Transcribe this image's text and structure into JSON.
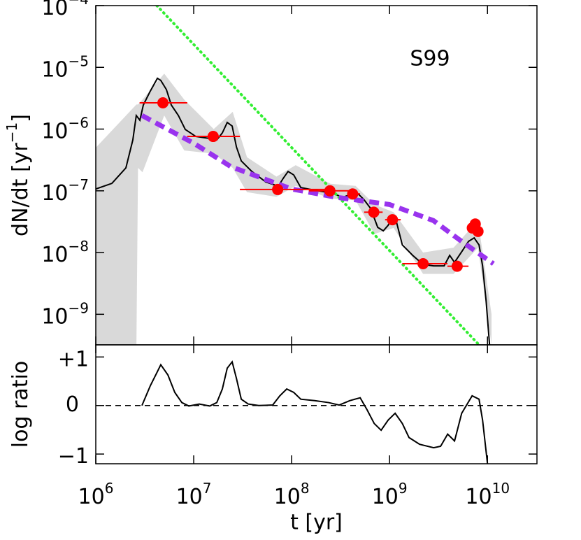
{
  "chart_data": [
    {
      "type": "line",
      "annotation": "S99",
      "ylabel": {
        "text": "dN/dt  [yr",
        "superscript": "−1",
        "suffix": "]"
      },
      "xlog": true,
      "ylog": true,
      "xlim": [
        1000000,
        32000000000
      ],
      "ylim": [
        3.2e-10,
        0.0001
      ],
      "xticks": [
        1000000,
        10000000,
        100000000,
        1000000000,
        10000000000
      ],
      "yticks": [
        {
          "value": 0.0001,
          "label": "10",
          "exponent": "−4"
        },
        {
          "value": 1e-05,
          "label": "10",
          "exponent": "−5"
        },
        {
          "value": 1e-06,
          "label": "10",
          "exponent": "−6"
        },
        {
          "value": 1e-07,
          "label": "10",
          "exponent": "−7"
        },
        {
          "value": 1e-08,
          "label": "10",
          "exponent": "−8"
        },
        {
          "value": 1e-09,
          "label": "10",
          "exponent": "−9"
        }
      ],
      "series": [
        {
          "kind": "band",
          "color": "#d9d9d9",
          "x": [
            1000000,
            2600000,
            2700000,
            3000000,
            5000000,
            8000000,
            16000000,
            25000000,
            35000000,
            70000000,
            110000000,
            250000000,
            450000000,
            700000000,
            1100000000,
            2200000000,
            4500000000,
            8000000000,
            11000000000
          ],
          "upper": [
            5e-07,
            2.5e-06,
            2.5e-06,
            3e-06,
            7.9e-06,
            3e-06,
            1e-06,
            1.9e-06,
            3.5e-07,
            1.7e-07,
            2.6e-07,
            1.3e-07,
            1.2e-07,
            6e-08,
            4.5e-08,
            1e-08,
            1.2e-08,
            3.3e-08,
            1e-09
          ],
          "lower": [
            3.2e-10,
            3.2e-10,
            2.35e-07,
            2e-07,
            1.66e-06,
            4.5e-07,
            4e-07,
            2.35e-07,
            9.5e-08,
            8e-08,
            1.2e-07,
            7.5e-08,
            7e-08,
            2e-08,
            2.5e-08,
            4.5e-09,
            4.5e-09,
            1.2e-08,
            3.2e-10
          ]
        },
        {
          "kind": "line",
          "color": "#000000",
          "width": 2,
          "style": "solid",
          "x": [
            1000000,
            1460000,
            2030000,
            2390000,
            2590000,
            2820000,
            3060000,
            3610000,
            4260000,
            4610000,
            5260000,
            5900000,
            6970000,
            8200000,
            10500000,
            14600000,
            17200000,
            19600000,
            22000000,
            24700000,
            27300000,
            30600000,
            39200000,
            54500000,
            73100000,
            82000000,
            92000000,
            105000000,
            124000000,
            172000000,
            259000000,
            332000000,
            461000000,
            545000000,
            641000000,
            757000000,
            863000000,
            968000000,
            1050000000,
            1160000000,
            1350000000,
            1720000000,
            2200000000,
            2820000000,
            3610000000,
            4110000000,
            4610000000,
            5450000000,
            6410000000,
            7310000000,
            8200000000,
            8910000000,
            9680000000,
            10500000000
          ],
          "values": [
            1.07e-07,
            1.32e-07,
            2.35e-07,
            6.67e-07,
            1.66e-06,
            1.39e-06,
            2.46e-06,
            4.15e-06,
            6.64e-06,
            6.14e-06,
            4.37e-06,
            2.46e-06,
            1.66e-06,
            9.86e-07,
            7.6e-07,
            7.03e-07,
            6.67e-07,
            8.67e-07,
            1.28e-06,
            1.12e-06,
            5.14e-07,
            3.05e-07,
            2.06e-07,
            1.39e-07,
            1.19e-07,
            1.59e-07,
            2.06e-07,
            1.81e-07,
            1.13e-07,
            1.02e-07,
            9.18e-08,
            7.85e-08,
            9.42e-08,
            7.26e-08,
            5.18e-08,
            2.56e-08,
            2.25e-08,
            2.77e-08,
            3.59e-08,
            3.41e-08,
            1.33e-08,
            9.02e-09,
            6.42e-09,
            6.09e-09,
            6.09e-09,
            9.02e-09,
            6.94e-09,
            1.03e-08,
            1.52e-08,
            1.73e-08,
            1.33e-08,
            6.09e-09,
            1.65e-09,
            3.19e-10
          ]
        },
        {
          "kind": "line",
          "color": "#33ee33",
          "width": 4,
          "style": "dotted",
          "x": [
            4200000,
            8200000000
          ],
          "values": [
            0.0001,
            3.2e-10
          ]
        },
        {
          "kind": "line",
          "color": "#9933ee",
          "width": 7,
          "style": "dashed",
          "x": [
            2960000,
            10000000,
            24000000,
            100000000,
            280000000,
            1000000000,
            2800000000,
            5500000000,
            11500000000
          ],
          "values": [
            1.66e-06,
            5.9e-07,
            2.46e-07,
            1.07e-07,
            7.9e-08,
            6e-08,
            3.3e-08,
            1.5e-08,
            6.6e-09
          ]
        },
        {
          "kind": "scatter",
          "color": "#ff0000",
          "x": [
            4850000,
            15800000,
            72000000,
            246000000,
            420000000,
            690000000,
            1070000000,
            2200000000,
            4900000000,
            7000000000,
            7500000000,
            8000000000
          ],
          "values": [
            2.66e-06,
            7.6e-07,
            1.05e-07,
            1e-07,
            8.9e-08,
            4.5e-08,
            3.4e-08,
            6.6e-09,
            6e-09,
            2.5e-08,
            2.9e-08,
            2.2e-08
          ],
          "xerr_low": [
            2800000,
            8600000,
            29600000,
            150000000,
            390000000,
            550000000,
            900000000,
            1350000000,
            3900000000,
            7000000000,
            7500000000,
            8000000000
          ],
          "xerr_high": [
            8600000,
            29600000,
            235000000,
            390000000,
            500000000,
            850000000,
            1300000000,
            3900000000,
            6400000000,
            7000000000,
            7500000000,
            8000000000
          ]
        }
      ]
    },
    {
      "type": "line",
      "ylabel": {
        "text": "log ratio"
      },
      "xlabel": "t  [yr]",
      "xlog": true,
      "ylog": false,
      "xlim": [
        1000000,
        32000000000
      ],
      "ylim": [
        -1.2,
        1.25
      ],
      "xticks": [
        {
          "value": 1000000,
          "label": "10",
          "exponent": "6"
        },
        {
          "value": 10000000,
          "label": "10",
          "exponent": "7"
        },
        {
          "value": 100000000,
          "label": "10",
          "exponent": "8"
        },
        {
          "value": 1000000000,
          "label": "10",
          "exponent": "9"
        },
        {
          "value": 10000000000,
          "label": "10",
          "exponent": "10"
        }
      ],
      "yticks": [
        {
          "value": 1,
          "label": "+1"
        },
        0,
        {
          "value": -1,
          "label": "−1"
        }
      ],
      "reference_line": 0,
      "series": [
        {
          "kind": "line",
          "color": "#000000",
          "width": 2,
          "style": "solid",
          "x": [
            2960000,
            3610000,
            4260000,
            4610000,
            5450000,
            6410000,
            7570000,
            8910000,
            11400000,
            14600000,
            17200000,
            19600000,
            22000000,
            24700000,
            27300000,
            30600000,
            36100000,
            46100000,
            64100000,
            75700000,
            89100000,
            105000000,
            124000000,
            172000000,
            239000000,
            306000000,
            392000000,
            501000000,
            590000000,
            697000000,
            820000000,
            968000000,
            1140000000,
            1350000000,
            1580000000,
            2030000000,
            2820000000,
            3320000000,
            3920000000,
            4610000000,
            5450000000,
            6970000000,
            8200000000,
            8910000000,
            10000000000
          ],
          "values": [
            0,
            0.41,
            0.7,
            0.84,
            0.63,
            0.27,
            0.06,
            -0.01,
            0.03,
            -0.01,
            0.06,
            0.34,
            0.77,
            0.9,
            0.56,
            0.13,
            0.03,
            0,
            0.01,
            0.2,
            0.34,
            0.27,
            0.13,
            0.1,
            0.06,
            0.01,
            0.1,
            0.16,
            -0.09,
            -0.37,
            -0.51,
            -0.3,
            -0.16,
            -0.37,
            -0.66,
            -0.8,
            -0.87,
            -0.84,
            -0.59,
            -0.73,
            -0.16,
            0.2,
            0.13,
            -0.3,
            -1.2
          ]
        }
      ]
    }
  ]
}
